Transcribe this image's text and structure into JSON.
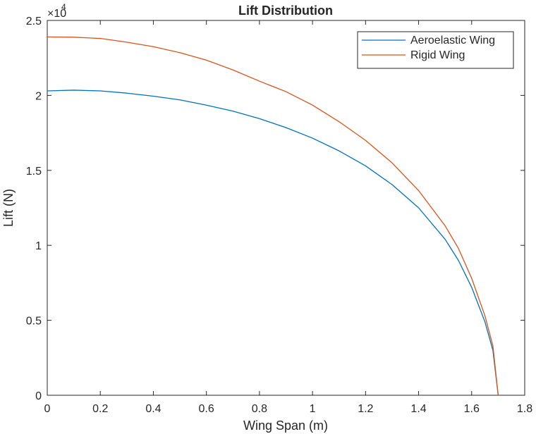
{
  "chart_data": {
    "type": "line",
    "title": "Lift Distribution",
    "xlabel": "Wing Span (m)",
    "ylabel": "Lift (N)",
    "xlim": [
      0,
      1.8
    ],
    "ylim": [
      0,
      25000
    ],
    "y_exponent": {
      "base": "×10",
      "power": "4"
    },
    "x_ticks": [
      {
        "value": 0,
        "label": "0"
      },
      {
        "value": 0.2,
        "label": "0.2"
      },
      {
        "value": 0.4,
        "label": "0.4"
      },
      {
        "value": 0.6,
        "label": "0.6"
      },
      {
        "value": 0.8,
        "label": "0.8"
      },
      {
        "value": 1.0,
        "label": "1"
      },
      {
        "value": 1.2,
        "label": "1.2"
      },
      {
        "value": 1.4,
        "label": "1.4"
      },
      {
        "value": 1.6,
        "label": "1.6"
      },
      {
        "value": 1.8,
        "label": "1.8"
      }
    ],
    "y_ticks": [
      {
        "value": 0,
        "label": "0"
      },
      {
        "value": 5000,
        "label": "0.5"
      },
      {
        "value": 10000,
        "label": "1"
      },
      {
        "value": 15000,
        "label": "1.5"
      },
      {
        "value": 20000,
        "label": "2"
      },
      {
        "value": 25000,
        "label": "2.5"
      }
    ],
    "grid": false,
    "legend_position": "top-right",
    "series": [
      {
        "name": "Aeroelastic Wing",
        "color": "#0072BD",
        "x": [
          0,
          0.1,
          0.2,
          0.3,
          0.4,
          0.5,
          0.6,
          0.7,
          0.8,
          0.9,
          1.0,
          1.1,
          1.2,
          1.3,
          1.4,
          1.5,
          1.55,
          1.6,
          1.65,
          1.68,
          1.7
        ],
        "y": [
          20300,
          20350,
          20300,
          20150,
          19950,
          19700,
          19350,
          18950,
          18450,
          17850,
          17150,
          16300,
          15300,
          14050,
          12500,
          10400,
          9000,
          7200,
          4900,
          3000,
          0
        ]
      },
      {
        "name": "Rigid Wing",
        "color": "#D95319",
        "x": [
          0,
          0.1,
          0.2,
          0.3,
          0.4,
          0.5,
          0.6,
          0.7,
          0.8,
          0.9,
          1.0,
          1.1,
          1.2,
          1.3,
          1.4,
          1.5,
          1.55,
          1.6,
          1.65,
          1.68,
          1.7
        ],
        "y": [
          23900,
          23880,
          23800,
          23550,
          23250,
          22850,
          22350,
          21700,
          20950,
          20250,
          19350,
          18250,
          17000,
          15500,
          13650,
          11300,
          9800,
          7800,
          5300,
          3300,
          0
        ]
      }
    ]
  }
}
